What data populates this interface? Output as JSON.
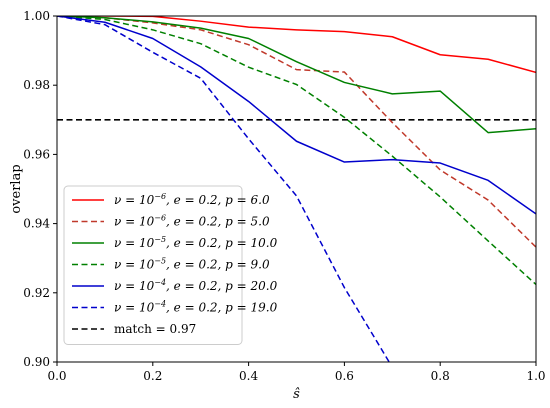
{
  "chart_data": {
    "type": "line",
    "xlabel": "ŝ",
    "ylabel": "overlap",
    "xlim": [
      0.0,
      1.0
    ],
    "ylim": [
      0.9,
      1.0
    ],
    "xticks": [
      "0.0",
      "0.2",
      "0.4",
      "0.6",
      "0.8",
      "1.0"
    ],
    "xtick_values": [
      0.0,
      0.2,
      0.4,
      0.6,
      0.8,
      1.0
    ],
    "yticks": [
      "0.90",
      "0.92",
      "0.94",
      "0.96",
      "0.98",
      "1.00"
    ],
    "ytick_values": [
      0.9,
      0.92,
      0.94,
      0.96,
      0.98,
      1.0
    ],
    "grid": false,
    "legend_position": "lower-left",
    "x": [
      0.0,
      0.1,
      0.2,
      0.3,
      0.4,
      0.5,
      0.6,
      0.7,
      0.8,
      0.9,
      1.0
    ],
    "series": [
      {
        "nu_exp": "−6",
        "rest": "e = 0.2, p = 6.0",
        "color": "#ff0000",
        "dash": "solid",
        "values": [
          1.0,
          1.0,
          0.9999,
          0.9985,
          0.9968,
          0.996,
          0.9955,
          0.994,
          0.9888,
          0.9875,
          0.9837
        ]
      },
      {
        "nu_exp": "−6",
        "rest": "e = 0.2, p = 5.0",
        "color": "#c0392b",
        "dash": "dashed",
        "values": [
          1.0,
          0.9995,
          0.998,
          0.996,
          0.9917,
          0.9845,
          0.9838,
          0.9692,
          0.9555,
          0.9468,
          0.9332
        ]
      },
      {
        "nu_exp": "−5",
        "rest": "e = 0.2, p = 10.0",
        "color": "#008000",
        "dash": "solid",
        "values": [
          1.0,
          0.9995,
          0.9983,
          0.9965,
          0.9935,
          0.9868,
          0.9808,
          0.9775,
          0.9783,
          0.9663,
          0.9674
        ]
      },
      {
        "nu_exp": "−5",
        "rest": "e = 0.2, p = 9.0",
        "color": "#008000",
        "dash": "dashed",
        "values": [
          1.0,
          0.999,
          0.996,
          0.992,
          0.9852,
          0.9802,
          0.9707,
          0.9595,
          0.9477,
          0.935,
          0.9224
        ]
      },
      {
        "nu_exp": "−4",
        "rest": "e = 0.2, p = 20.0",
        "color": "#0000cc",
        "dash": "solid",
        "values": [
          1.0,
          0.9982,
          0.9935,
          0.9853,
          0.9753,
          0.9638,
          0.9578,
          0.9585,
          0.9575,
          0.9525,
          0.9428
        ]
      },
      {
        "nu_exp": "−4",
        "rest": "e = 0.2, p = 19.0",
        "color": "#0000cc",
        "dash": "dashed",
        "values": [
          1.0,
          0.9975,
          0.9895,
          0.982,
          0.9645,
          0.948,
          0.9215,
          0.8985,
          null,
          null,
          null
        ]
      }
    ],
    "reference_line": {
      "label": "match = 0.97",
      "value": 0.97,
      "color": "#000000",
      "dash": "dashed"
    }
  }
}
